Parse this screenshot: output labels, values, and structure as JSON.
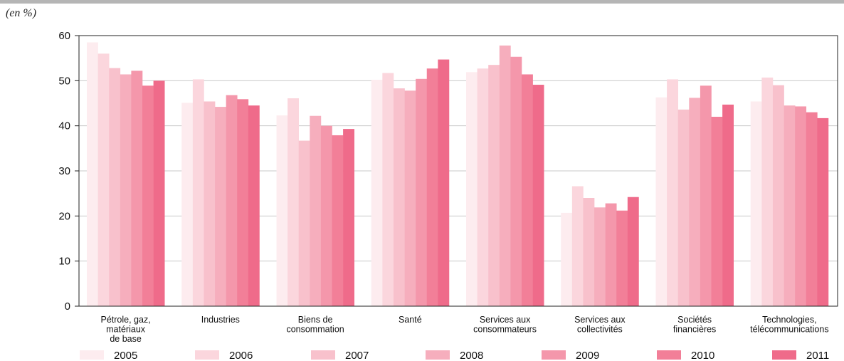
{
  "unit_label": "(en %)",
  "colors": [
    "#fdecef",
    "#fbd6dd",
    "#f8c1cc",
    "#f6aebd",
    "#f497ab",
    "#f27f98",
    "#ef6b8a"
  ],
  "chart_data": {
    "type": "bar",
    "title": "",
    "xlabel": "",
    "ylabel": "(en %)",
    "ylim": [
      0,
      60
    ],
    "yticks": [
      "0",
      "10",
      "20",
      "30",
      "40",
      "50",
      "60"
    ],
    "grid": true,
    "legend_position": "bottom",
    "categories": [
      [
        "Pétrole, gaz,",
        "matériaux",
        "de base"
      ],
      [
        "Industries"
      ],
      [
        "Biens de",
        "consommation"
      ],
      [
        "Santé"
      ],
      [
        "Services aux",
        "consommateurs"
      ],
      [
        "Services aux",
        "collectivités"
      ],
      [
        "Sociétés",
        "financières"
      ],
      [
        "Technologies,",
        "télécommunications"
      ]
    ],
    "series": [
      {
        "name": "2005",
        "values": [
          58.5,
          45.1,
          42.3,
          50.2,
          51.9,
          20.7,
          46.3,
          45.4
        ]
      },
      {
        "name": "2006",
        "values": [
          56.0,
          50.3,
          46.1,
          51.7,
          52.7,
          26.6,
          50.3,
          50.7
        ]
      },
      {
        "name": "2007",
        "values": [
          52.8,
          45.4,
          36.7,
          48.3,
          53.5,
          24.0,
          43.6,
          49.0
        ]
      },
      {
        "name": "2008",
        "values": [
          51.4,
          44.2,
          42.2,
          47.8,
          57.8,
          21.9,
          46.2,
          44.5
        ]
      },
      {
        "name": "2009",
        "values": [
          52.2,
          46.8,
          40.0,
          50.4,
          55.3,
          22.8,
          48.9,
          44.3
        ]
      },
      {
        "name": "2010",
        "values": [
          48.9,
          45.9,
          37.9,
          52.7,
          51.4,
          21.2,
          42.0,
          43.0
        ]
      },
      {
        "name": "2011",
        "values": [
          50.0,
          44.5,
          39.3,
          54.7,
          49.1,
          24.2,
          44.7,
          41.7
        ]
      }
    ]
  }
}
